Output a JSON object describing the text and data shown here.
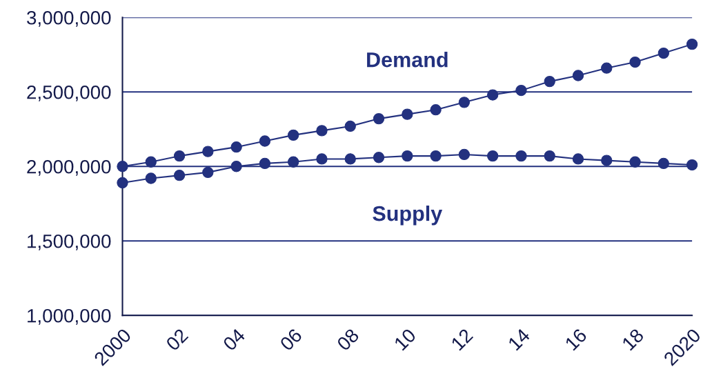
{
  "chart_data": {
    "type": "line",
    "x": [
      2000,
      2001,
      2002,
      2003,
      2004,
      2005,
      2006,
      2007,
      2008,
      2009,
      2010,
      2011,
      2012,
      2013,
      2014,
      2015,
      2016,
      2017,
      2018,
      2019,
      2020
    ],
    "series": [
      {
        "name": "Demand",
        "color": "#23317f",
        "values": [
          2000000,
          2030000,
          2070000,
          2100000,
          2130000,
          2170000,
          2210000,
          2240000,
          2270000,
          2320000,
          2350000,
          2380000,
          2430000,
          2480000,
          2510000,
          2570000,
          2610000,
          2660000,
          2700000,
          2760000,
          2820000
        ]
      },
      {
        "name": "Supply",
        "color": "#23317f",
        "values": [
          1890000,
          1920000,
          1940000,
          1960000,
          2000000,
          2020000,
          2030000,
          2050000,
          2050000,
          2060000,
          2070000,
          2070000,
          2080000,
          2070000,
          2070000,
          2070000,
          2050000,
          2040000,
          2030000,
          2020000,
          2010000
        ]
      }
    ],
    "xlim": [
      2000,
      2020
    ],
    "xticks": [
      2000,
      {
        "value": 2002,
        "label": "02"
      },
      {
        "value": 2004,
        "label": "04"
      },
      {
        "value": 2006,
        "label": "06"
      },
      {
        "value": 2008,
        "label": "08"
      },
      {
        "value": 2010,
        "label": "10"
      },
      {
        "value": 2012,
        "label": "12"
      },
      {
        "value": 2014,
        "label": "14"
      },
      {
        "value": 2016,
        "label": "16"
      },
      {
        "value": 2018,
        "label": "18"
      },
      2020
    ],
    "ylim": [
      1000000,
      3000000
    ],
    "yticks": [
      {
        "value": 1000000,
        "label": "1,000,000"
      },
      {
        "value": 1500000,
        "label": "1,500,000"
      },
      {
        "value": 2000000,
        "label": "2,000,000"
      },
      {
        "value": 2500000,
        "label": "2,500,000"
      },
      {
        "value": 3000000,
        "label": "3,000,000"
      }
    ],
    "grid": "y",
    "marker": "circle",
    "line_style": "solid",
    "legend": false
  }
}
